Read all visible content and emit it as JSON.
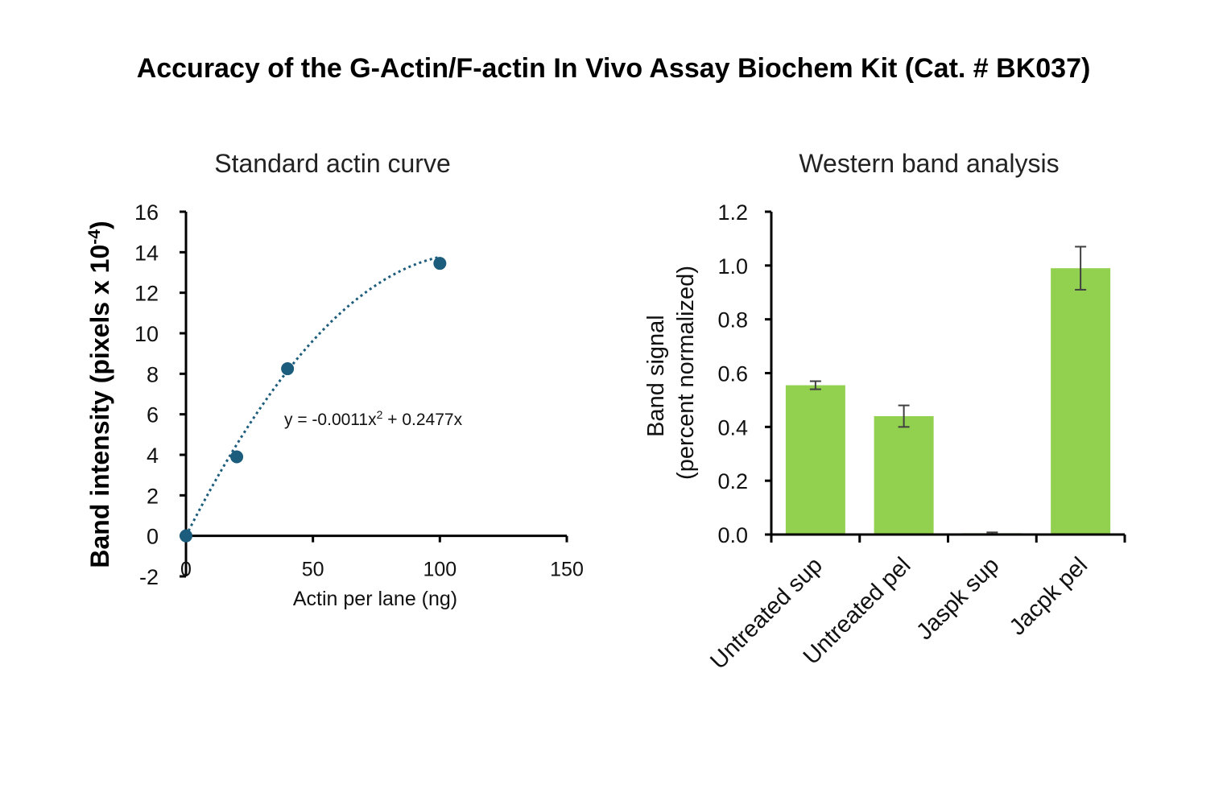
{
  "title": "Accuracy of the G-Actin/F-actin In Vivo Assay Biochem Kit (Cat. # BK037)",
  "chart_data": [
    {
      "type": "scatter",
      "title": "Standard actin curve",
      "xlabel": "Actin per lane (ng)",
      "ylabel_main": "Band intensity (pixels x 10",
      "ylabel_sup": "-4",
      "ylabel_end": ")",
      "xlim": [
        0,
        150
      ],
      "ylim": [
        -2,
        16
      ],
      "xticks": [
        0,
        50,
        100,
        150
      ],
      "yticks": [
        -2,
        0,
        2,
        4,
        6,
        8,
        10,
        12,
        14,
        16
      ],
      "points": [
        {
          "x": 0,
          "y": 0
        },
        {
          "x": 20,
          "y": 3.9
        },
        {
          "x": 40,
          "y": 8.25
        },
        {
          "x": 100,
          "y": 13.45
        }
      ],
      "trendline": {
        "a": -0.0011,
        "b": 0.2477,
        "c": 0,
        "x_range": [
          0,
          100
        ]
      },
      "equation_main": "y = -0.0011x",
      "equation_sup": "2",
      "equation_end": " + 0.2477x",
      "colors": {
        "marker": "#1c5c7c",
        "trendline": "#1c5c7c"
      }
    },
    {
      "type": "bar",
      "title": "Western band analysis",
      "ylabel_line1": "Band signal",
      "ylabel_line2": "(percent normalized)",
      "categories": [
        "Untreated sup",
        "Untreated pel",
        "Jaspk sup",
        "Jacpk pel"
      ],
      "values": [
        0.555,
        0.44,
        0.005,
        0.99
      ],
      "errors": [
        0.015,
        0.04,
        0.003,
        0.08
      ],
      "ylim": [
        0,
        1.2
      ],
      "yticks": [
        "0.0",
        "0.2",
        "0.4",
        "0.6",
        "0.8",
        "1.0",
        "1.2"
      ],
      "colors": {
        "bar": "#92d050",
        "error": "#404040"
      }
    }
  ]
}
